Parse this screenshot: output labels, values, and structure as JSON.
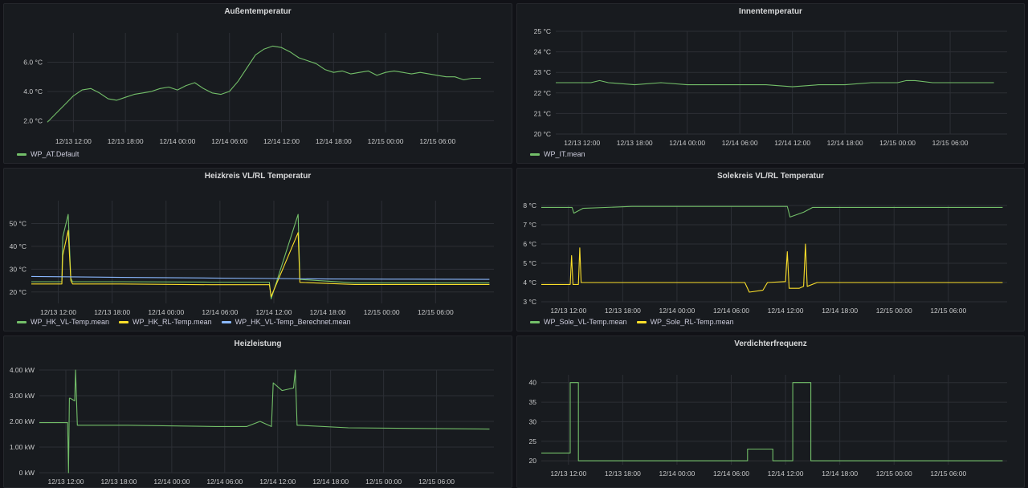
{
  "theme": {
    "background": "#111217",
    "panel": "#181b1f",
    "grid": "#2c2f35",
    "axis_text": "#c8c9ca"
  },
  "chart_data": [
    {
      "id": "p1",
      "type": "line",
      "title": "Außentemperatur",
      "unit": "°C",
      "yticks": [
        {
          "v": 2,
          "label": "2.0 °C"
        },
        {
          "v": 4,
          "label": "4.0 °C"
        },
        {
          "v": 6,
          "label": "6.0 °C"
        }
      ],
      "ylim": [
        1.2,
        8
      ],
      "xlim": [
        0,
        51.5
      ],
      "xticks": [
        {
          "v": 3,
          "label": "12/13 12:00"
        },
        {
          "v": 9,
          "label": "12/13 18:00"
        },
        {
          "v": 15,
          "label": "12/14 00:00"
        },
        {
          "v": 21,
          "label": "12/14 06:00"
        },
        {
          "v": 27,
          "label": "12/14 12:00"
        },
        {
          "v": 33,
          "label": "12/14 18:00"
        },
        {
          "v": 39,
          "label": "12/15 00:00"
        },
        {
          "v": 45,
          "label": "12/15 06:00"
        }
      ],
      "series": [
        {
          "name": "WP_AT.Default",
          "color": "#73bf69",
          "x": [
            0,
            1,
            2,
            3,
            4,
            5,
            6,
            7,
            8,
            9,
            10,
            11,
            12,
            13,
            14,
            15,
            16,
            17,
            18,
            19,
            20,
            21,
            22,
            23,
            24,
            25,
            26,
            27,
            28,
            29,
            30,
            31,
            32,
            33,
            34,
            35,
            36,
            37,
            38,
            39,
            40,
            41,
            42,
            43,
            44,
            45,
            46,
            47,
            48,
            49,
            50
          ],
          "y": [
            1.9,
            2.5,
            3.1,
            3.7,
            4.1,
            4.2,
            3.9,
            3.5,
            3.4,
            3.6,
            3.8,
            3.9,
            4.0,
            4.2,
            4.3,
            4.1,
            4.4,
            4.6,
            4.2,
            3.9,
            3.8,
            4.0,
            4.7,
            5.6,
            6.5,
            6.9,
            7.1,
            7.0,
            6.7,
            6.3,
            6.1,
            5.9,
            5.5,
            5.3,
            5.4,
            5.2,
            5.3,
            5.4,
            5.1,
            5.3,
            5.4,
            5.3,
            5.2,
            5.3,
            5.2,
            5.1,
            5.0,
            5.0,
            4.8,
            4.9,
            4.9
          ]
        }
      ]
    },
    {
      "id": "p2",
      "type": "line",
      "title": "Innentemperatur",
      "unit": "°C",
      "yticks": [
        {
          "v": 20,
          "label": "20 °C"
        },
        {
          "v": 21,
          "label": "21 °C"
        },
        {
          "v": 22,
          "label": "22 °C"
        },
        {
          "v": 23,
          "label": "23 °C"
        },
        {
          "v": 24,
          "label": "24 °C"
        },
        {
          "v": 25,
          "label": "25 °C"
        }
      ],
      "ylim": [
        20,
        25
      ],
      "xlim": [
        0,
        51.5
      ],
      "xticks": [
        {
          "v": 3,
          "label": "12/13 12:00"
        },
        {
          "v": 9,
          "label": "12/13 18:00"
        },
        {
          "v": 15,
          "label": "12/14 00:00"
        },
        {
          "v": 21,
          "label": "12/14 06:00"
        },
        {
          "v": 27,
          "label": "12/14 12:00"
        },
        {
          "v": 33,
          "label": "12/14 18:00"
        },
        {
          "v": 39,
          "label": "12/15 00:00"
        },
        {
          "v": 45,
          "label": "12/15 06:00"
        }
      ],
      "series": [
        {
          "name": "WP_IT.mean",
          "color": "#73bf69",
          "x": [
            0,
            4,
            5,
            6,
            9,
            12,
            15,
            18,
            21,
            24,
            27,
            30,
            33,
            36,
            39,
            40,
            41,
            43,
            46,
            50
          ],
          "y": [
            22.5,
            22.5,
            22.6,
            22.5,
            22.4,
            22.5,
            22.4,
            22.4,
            22.4,
            22.4,
            22.3,
            22.4,
            22.4,
            22.5,
            22.5,
            22.6,
            22.6,
            22.5,
            22.5,
            22.5
          ]
        }
      ]
    },
    {
      "id": "p3",
      "type": "line",
      "title": "Heizkreis VL/RL Temperatur",
      "unit": "°C",
      "yticks": [
        {
          "v": 20,
          "label": "20 °C"
        },
        {
          "v": 30,
          "label": "30 °C"
        },
        {
          "v": 40,
          "label": "40 °C"
        },
        {
          "v": 50,
          "label": "50 °C"
        }
      ],
      "ylim": [
        15,
        60
      ],
      "xlim": [
        0,
        51.5
      ],
      "xticks": [
        {
          "v": 3,
          "label": "12/13 12:00"
        },
        {
          "v": 9,
          "label": "12/13 18:00"
        },
        {
          "v": 15,
          "label": "12/14 00:00"
        },
        {
          "v": 21,
          "label": "12/14 06:00"
        },
        {
          "v": 27,
          "label": "12/14 12:00"
        },
        {
          "v": 33,
          "label": "12/14 18:00"
        },
        {
          "v": 39,
          "label": "12/15 00:00"
        },
        {
          "v": 45,
          "label": "12/15 06:00"
        }
      ],
      "series": [
        {
          "name": "WP_HK_VL-Temp.mean",
          "color": "#73bf69",
          "x": [
            0,
            3.4,
            3.5,
            4.1,
            4.4,
            4.6,
            10,
            20,
            26.5,
            26.7,
            29.7,
            29.9,
            36,
            51
          ],
          "y": [
            24.5,
            24.5,
            44,
            54,
            26,
            24.5,
            24.5,
            24.3,
            24.3,
            17,
            54,
            25.5,
            24,
            24
          ]
        },
        {
          "name": "WP_HK_RL-Temp.mean",
          "color": "#fade2a",
          "x": [
            0,
            3.4,
            3.5,
            4.1,
            4.4,
            4.6,
            10,
            20,
            26.5,
            26.7,
            29.7,
            29.9,
            36,
            51
          ],
          "y": [
            23.5,
            23.5,
            36,
            47,
            25,
            23.5,
            23.5,
            23.2,
            23.2,
            18,
            46,
            24.2,
            23.3,
            23.3
          ]
        },
        {
          "name": "WP_HK_VL-Temp_Berechnet.mean",
          "color": "#8ab8ff",
          "x": [
            0,
            10,
            20,
            27,
            33,
            40,
            51
          ],
          "y": [
            26.8,
            26.4,
            26.1,
            25.9,
            25.7,
            25.6,
            25.5
          ]
        }
      ]
    },
    {
      "id": "p4",
      "type": "line",
      "title": "Solekreis VL/RL Temperatur",
      "unit": "°C",
      "yticks": [
        {
          "v": 3,
          "label": "3 °C"
        },
        {
          "v": 4,
          "label": "4 °C"
        },
        {
          "v": 5,
          "label": "5 °C"
        },
        {
          "v": 6,
          "label": "6 °C"
        },
        {
          "v": 7,
          "label": "7 °C"
        },
        {
          "v": 8,
          "label": "8 °C"
        }
      ],
      "ylim": [
        3,
        8
      ],
      "xlim": [
        0,
        51.5
      ],
      "xticks": [
        {
          "v": 3,
          "label": "12/13 12:00"
        },
        {
          "v": 9,
          "label": "12/13 18:00"
        },
        {
          "v": 15,
          "label": "12/14 00:00"
        },
        {
          "v": 21,
          "label": "12/14 06:00"
        },
        {
          "v": 27,
          "label": "12/14 12:00"
        },
        {
          "v": 33,
          "label": "12/14 18:00"
        },
        {
          "v": 39,
          "label": "12/15 00:00"
        },
        {
          "v": 45,
          "label": "12/15 06:00"
        }
      ],
      "series": [
        {
          "name": "WP_Sole_VL-Temp.mean",
          "color": "#73bf69",
          "x": [
            0,
            3,
            3.4,
            3.6,
            4.6,
            10,
            20,
            27.2,
            27.5,
            29,
            30,
            35,
            51
          ],
          "y": [
            7.9,
            7.9,
            7.9,
            7.6,
            7.85,
            7.95,
            7.95,
            7.95,
            7.4,
            7.65,
            7.9,
            7.9,
            7.9
          ]
        },
        {
          "name": "WP_Sole_RL-Temp.mean",
          "color": "#fade2a",
          "x": [
            0,
            3.2,
            3.35,
            3.5,
            4.1,
            4.25,
            4.4,
            10,
            22.5,
            23,
            24.5,
            25,
            27,
            27.2,
            27.4,
            28.5,
            29,
            29.2,
            29.4,
            30.5,
            40,
            51
          ],
          "y": [
            3.9,
            3.9,
            5.4,
            3.9,
            3.9,
            5.8,
            4.0,
            4.0,
            4.0,
            3.5,
            3.6,
            4.0,
            4.05,
            5.6,
            3.7,
            3.7,
            3.8,
            6.0,
            3.8,
            4.0,
            4.0,
            4.0
          ]
        }
      ]
    },
    {
      "id": "p5",
      "type": "line",
      "title": "Heizleistung",
      "unit": "kW",
      "yticks": [
        {
          "v": 0,
          "label": "0 kW"
        },
        {
          "v": 1,
          "label": "1.00 kW"
        },
        {
          "v": 2,
          "label": "2.00 kW"
        },
        {
          "v": 3,
          "label": "3.00 kW"
        },
        {
          "v": 4,
          "label": "4.00 kW"
        }
      ],
      "ylim": [
        0,
        4
      ],
      "xlim": [
        0,
        51.5
      ],
      "xticks": [
        {
          "v": 3,
          "label": "12/13 12:00"
        },
        {
          "v": 9,
          "label": "12/13 18:00"
        },
        {
          "v": 15,
          "label": "12/14 00:00"
        },
        {
          "v": 21,
          "label": "12/14 06:00"
        },
        {
          "v": 27,
          "label": "12/14 12:00"
        },
        {
          "v": 33,
          "label": "12/14 18:00"
        },
        {
          "v": 39,
          "label": "12/15 00:00"
        },
        {
          "v": 45,
          "label": "12/15 06:00"
        }
      ],
      "series": [
        {
          "name": "",
          "color": "#73bf69",
          "x": [
            0,
            3.2,
            3.3,
            3.4,
            3.5,
            4.0,
            4.1,
            4.3,
            10,
            20,
            23.5,
            25,
            26.3,
            26.5,
            27.5,
            28.8,
            29,
            29.2,
            29.4,
            35,
            51
          ],
          "y": [
            1.95,
            1.95,
            0,
            2.9,
            2.9,
            2.8,
            4.0,
            1.85,
            1.85,
            1.8,
            1.8,
            2.0,
            1.8,
            3.5,
            3.2,
            3.3,
            4.0,
            1.85,
            1.85,
            1.75,
            1.7
          ]
        }
      ]
    },
    {
      "id": "p6",
      "type": "line",
      "title": "Verdichterfrequenz",
      "unit": "",
      "yticks": [
        {
          "v": 20,
          "label": "20"
        },
        {
          "v": 25,
          "label": "25"
        },
        {
          "v": 30,
          "label": "30"
        },
        {
          "v": 35,
          "label": "35"
        },
        {
          "v": 40,
          "label": "40"
        }
      ],
      "ylim": [
        19,
        42
      ],
      "xlim": [
        0,
        51.5
      ],
      "xticks": [
        {
          "v": 3,
          "label": "12/13 12:00"
        },
        {
          "v": 9,
          "label": "12/13 18:00"
        },
        {
          "v": 15,
          "label": "12/14 00:00"
        },
        {
          "v": 21,
          "label": "12/14 06:00"
        },
        {
          "v": 27,
          "label": "12/14 12:00"
        },
        {
          "v": 33,
          "label": "12/14 18:00"
        },
        {
          "v": 39,
          "label": "12/15 00:00"
        },
        {
          "v": 45,
          "label": "12/15 06:00"
        }
      ],
      "series": [
        {
          "name": "",
          "color": "#73bf69",
          "x": [
            0,
            3.2,
            3.2,
            4.1,
            4.1,
            22.8,
            22.8,
            25.6,
            25.6,
            27.8,
            27.8,
            29.8,
            29.8,
            51
          ],
          "y": [
            22,
            22,
            40,
            40,
            20,
            20,
            23,
            23,
            20,
            20,
            40,
            40,
            20,
            20
          ]
        }
      ]
    }
  ]
}
